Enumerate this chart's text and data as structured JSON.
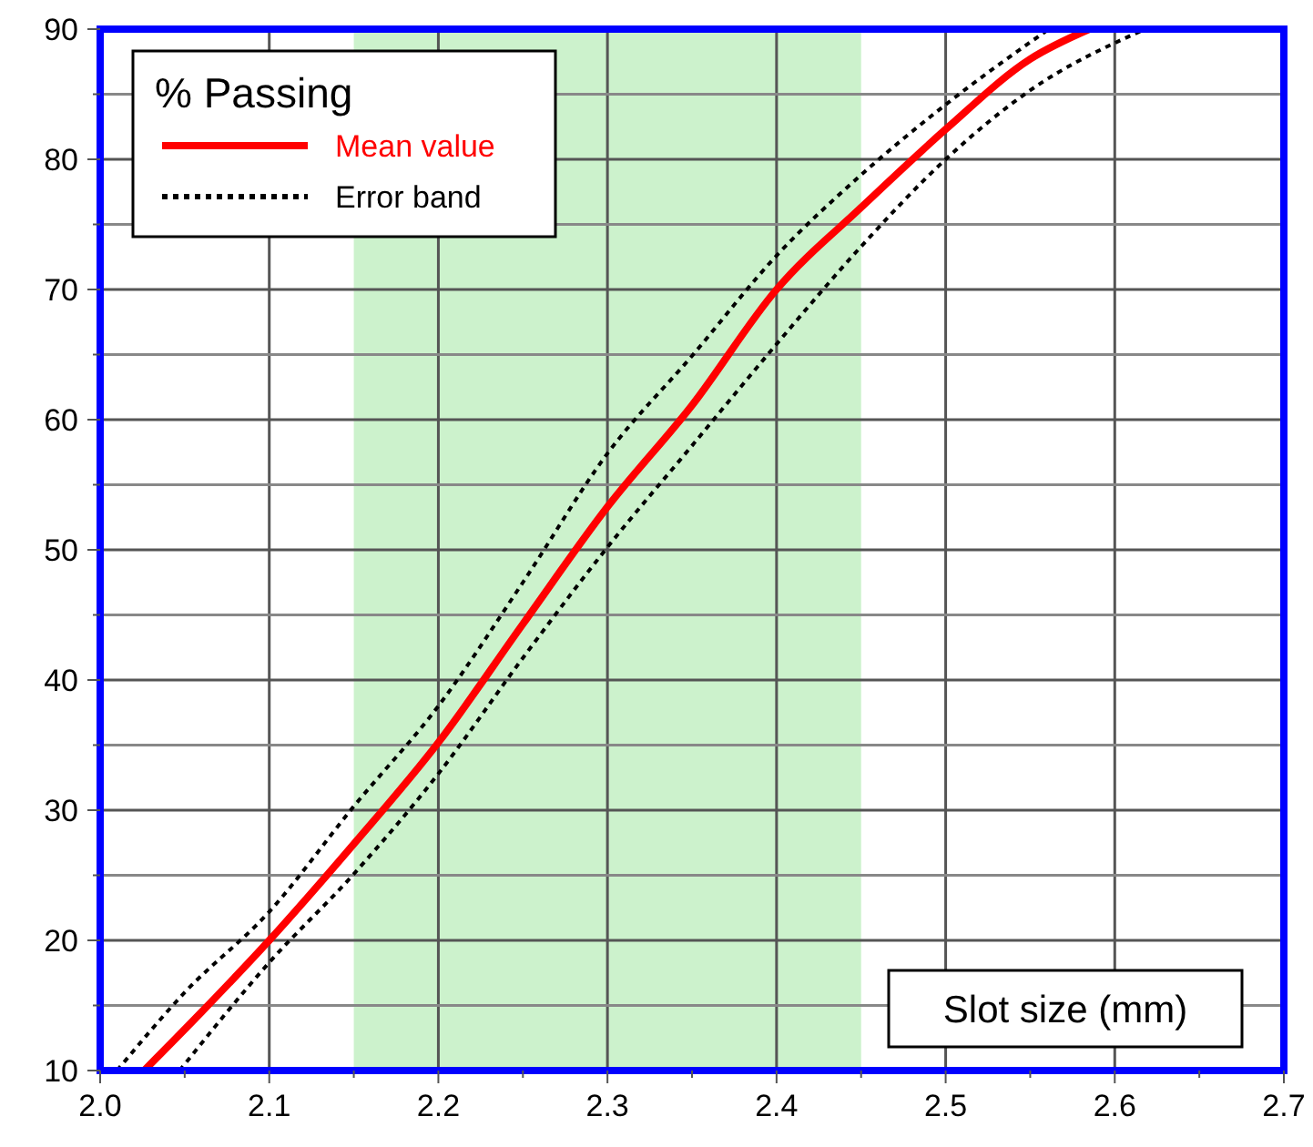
{
  "chart_data": {
    "type": "line",
    "xlabel": "Slot size (mm)",
    "legend_title": "% Passing",
    "legend": "top left",
    "grid": true,
    "marker": "none",
    "xlim": [
      2.0,
      2.7
    ],
    "xticks": [
      {
        "value": 2.0,
        "label": "2.0"
      },
      {
        "value": 2.05,
        "label": null
      },
      {
        "value": 2.1,
        "label": "2.1"
      },
      {
        "value": 2.15,
        "label": null
      },
      {
        "value": 2.2,
        "label": "2.2"
      },
      {
        "value": 2.25,
        "label": null
      },
      {
        "value": 2.3,
        "label": "2.3"
      },
      {
        "value": 2.35,
        "label": null
      },
      {
        "value": 2.4,
        "label": "2.4"
      },
      {
        "value": 2.45,
        "label": null
      },
      {
        "value": 2.5,
        "label": "2.5"
      },
      {
        "value": 2.55,
        "label": null
      },
      {
        "value": 2.6,
        "label": "2.6"
      },
      {
        "value": 2.65,
        "label": null
      },
      {
        "value": 2.7,
        "label": "2.7"
      }
    ],
    "ylim": [
      10,
      90
    ],
    "yticks": [
      10,
      {
        "value": 15,
        "label": null
      },
      20,
      {
        "value": 25,
        "label": null
      },
      30,
      {
        "value": 35,
        "label": null
      },
      40,
      {
        "value": 45,
        "label": null
      },
      50,
      {
        "value": 55,
        "label": null
      },
      60,
      {
        "value": 65,
        "label": null
      },
      70,
      {
        "value": 75,
        "label": null
      },
      80,
      {
        "value": 85,
        "label": null
      },
      90
    ],
    "bands": [
      {
        "axis": "x",
        "from": 2.15,
        "to": 2.45,
        "color": "#ccf2cc"
      }
    ],
    "series": [
      {
        "name": "Mean value",
        "color": "#ff0000",
        "line_style": "solid",
        "x": [
          2.026,
          2.06,
          2.1,
          2.15,
          2.2,
          2.25,
          2.3,
          2.35,
          2.4,
          2.45,
          2.5,
          2.55,
          2.585
        ],
        "values": [
          10,
          14.5,
          20,
          27.4,
          35.2,
          44.3,
          53.3,
          61.1,
          70,
          76.3,
          82.3,
          87.7,
          90
        ]
      },
      {
        "name": "Error band",
        "color": "#000000",
        "line_style": "dotted",
        "x": [
          2.01,
          2.05,
          2.1,
          2.15,
          2.2,
          2.25,
          2.3,
          2.35,
          2.4,
          2.45,
          2.5,
          2.561
        ],
        "values": [
          10,
          16,
          22.2,
          30.3,
          38,
          47.5,
          57.4,
          64.9,
          72.6,
          78.8,
          84.2,
          90
        ]
      },
      {
        "color": "#000000",
        "line_style": "dotted",
        "x": [
          2.047,
          2.1,
          2.15,
          2.2,
          2.25,
          2.3,
          2.35,
          2.4,
          2.45,
          2.5,
          2.55,
          2.618
        ],
        "values": [
          10,
          18.3,
          25.1,
          32.8,
          41.7,
          50.2,
          58,
          65.8,
          73.3,
          80,
          85.3,
          90
        ]
      }
    ]
  }
}
